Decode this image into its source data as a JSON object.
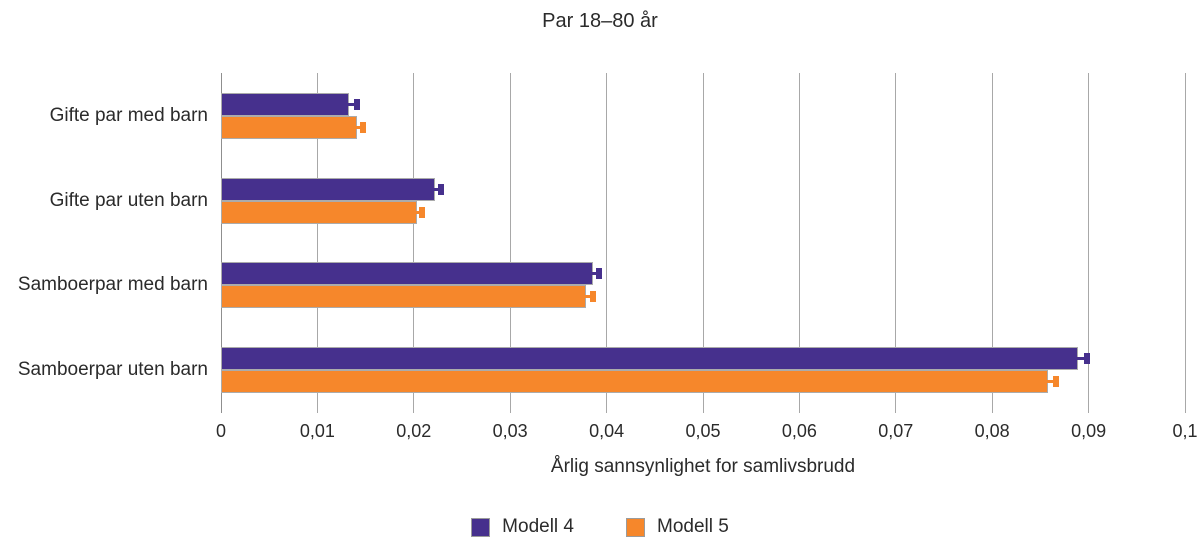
{
  "chart_data": {
    "type": "bar",
    "orientation": "horizontal",
    "title": "Par 18–80 år",
    "xlabel": "Årlig sannsynlighet for samlivsbrudd",
    "categories": [
      "Gifte par med barn",
      "Gifte par uten barn",
      "Samboerpar med barn",
      "Samboerpar uten barn"
    ],
    "series": [
      {
        "name": "Modell 4",
        "color": "#46308D",
        "values": [
          0.0133,
          0.0222,
          0.0386,
          0.0889
        ],
        "error_upper": [
          0.0141,
          0.0228,
          0.0392,
          0.0898
        ]
      },
      {
        "name": "Modell 5",
        "color": "#F6872B",
        "values": [
          0.0141,
          0.0203,
          0.0379,
          0.0858
        ],
        "error_upper": [
          0.0147,
          0.0209,
          0.0386,
          0.0866
        ]
      }
    ],
    "xlim": [
      0,
      0.1
    ],
    "xticks": [
      0,
      0.01,
      0.02,
      0.03,
      0.04,
      0.05,
      0.06,
      0.07,
      0.08,
      0.09,
      0.1
    ],
    "xtick_labels": [
      "0",
      "0,01",
      "0,02",
      "0,03",
      "0,04",
      "0,05",
      "0,06",
      "0,07",
      "0,08",
      "0,09",
      "0,1"
    ],
    "grid": "vertical-only",
    "legend_position": "bottom-center",
    "decimal_separator": ",",
    "colors": {
      "grid": "#A8A8A8",
      "axis": "#8F8F8F",
      "text": "#2B2B2B",
      "background": "#FFFFFF"
    }
  }
}
